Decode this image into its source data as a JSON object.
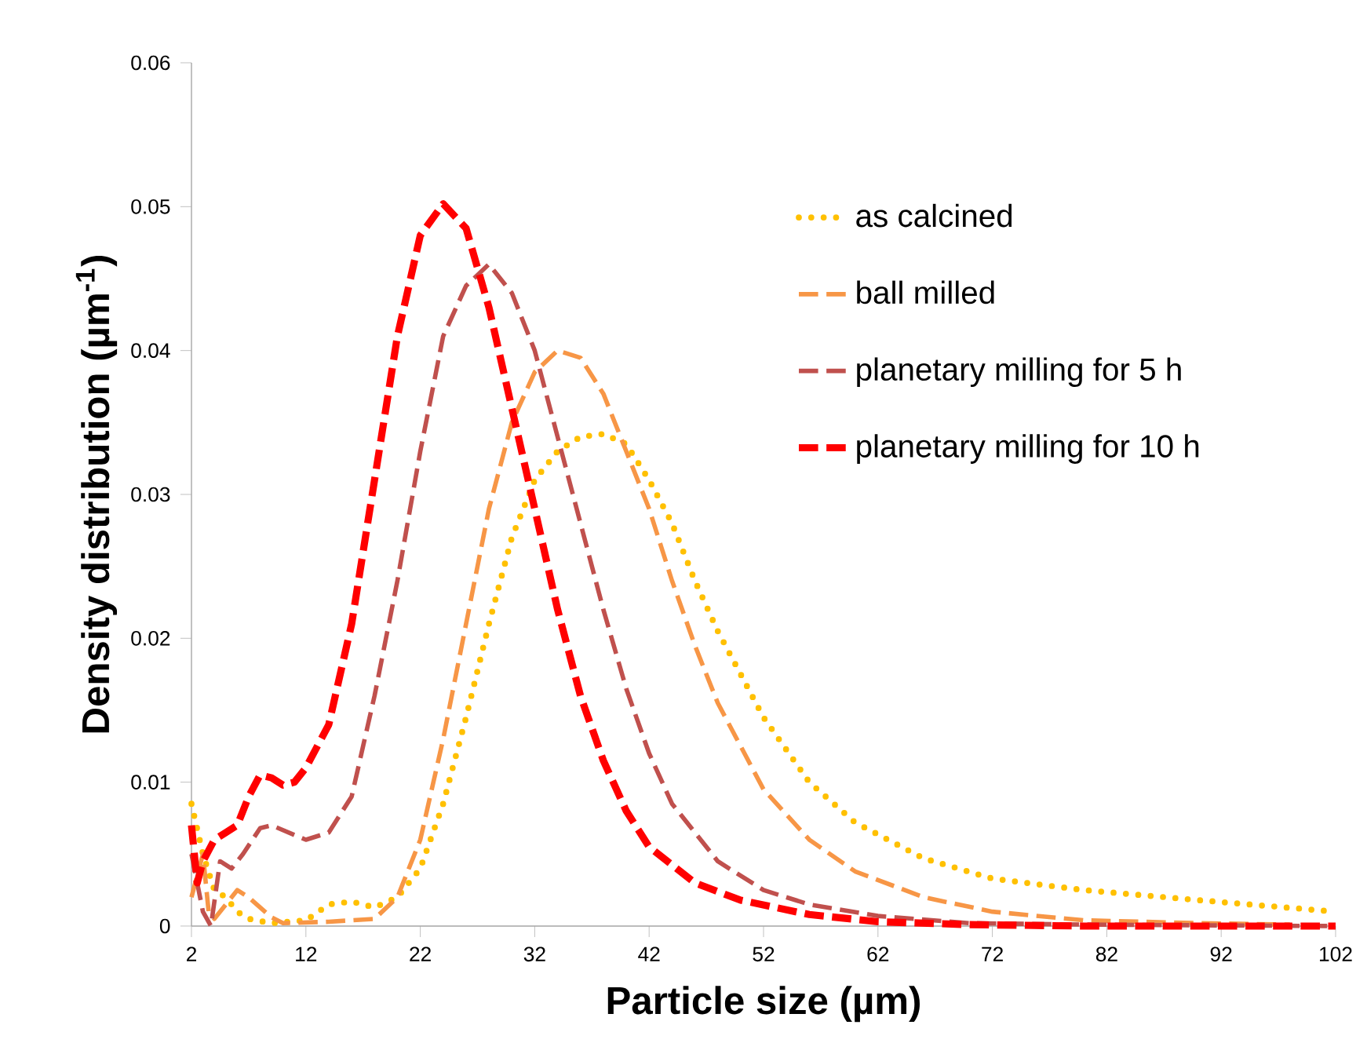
{
  "chart_data": {
    "type": "line",
    "xlabel": "Particle size (µm)",
    "ylabel": "Density distribution (µm$^{-1}$)",
    "xlim": [
      2,
      102
    ],
    "xticks": [
      2,
      12,
      22,
      32,
      42,
      52,
      62,
      72,
      82,
      92,
      102
    ],
    "ylim": [
      0,
      0.06
    ],
    "yticks": [
      0,
      0.01,
      0.02,
      0.03,
      0.04,
      0.05,
      0.06
    ],
    "grid": false,
    "legend": "right",
    "marker": "none",
    "series": [
      {
        "name": "as calcined",
        "color": "#ffc000",
        "line_style": "dotted",
        "x": [
          2,
          3,
          4,
          5,
          6,
          7,
          9,
          12,
          14,
          16,
          18,
          20,
          22,
          24,
          26,
          28,
          30,
          32,
          34,
          36,
          38,
          40,
          42,
          44,
          46,
          48,
          52,
          56,
          60,
          66,
          72,
          80,
          90,
          102
        ],
        "values": [
          0.0085,
          0.005,
          0.0025,
          0.002,
          0.001,
          0.0005,
          0.0002,
          0.0004,
          0.0015,
          0.0017,
          0.0013,
          0.002,
          0.004,
          0.0085,
          0.0145,
          0.021,
          0.027,
          0.031,
          0.033,
          0.034,
          0.0342,
          0.0335,
          0.031,
          0.028,
          0.024,
          0.0205,
          0.0145,
          0.01,
          0.0072,
          0.0047,
          0.0033,
          0.0025,
          0.0018,
          0.001
        ]
      },
      {
        "name": "ball milled",
        "color": "#f79646",
        "line_style": "dashed",
        "x": [
          2,
          3,
          3.5,
          4,
          5,
          6,
          7,
          9,
          10,
          14,
          18,
          20,
          22,
          24,
          26,
          28,
          30,
          32,
          34,
          36,
          38,
          40,
          42,
          44,
          46,
          48,
          52,
          56,
          60,
          66,
          72,
          80,
          90,
          98
        ],
        "values": [
          0.002,
          0.005,
          0.001,
          0.0005,
          0.0015,
          0.0025,
          0.002,
          0.0006,
          0.0002,
          0.0003,
          0.0005,
          0.002,
          0.006,
          0.013,
          0.021,
          0.029,
          0.035,
          0.0385,
          0.04,
          0.0395,
          0.037,
          0.033,
          0.029,
          0.024,
          0.0195,
          0.0155,
          0.0095,
          0.006,
          0.0038,
          0.002,
          0.001,
          0.0004,
          0.0002,
          0.0001
        ]
      },
      {
        "name": "planetary milling for 5 h",
        "color": "#c0504d",
        "line_style": "dashed",
        "x": [
          2,
          2.5,
          3,
          3.7,
          4.5,
          5.5,
          6.5,
          8,
          9,
          12,
          14,
          16,
          18,
          20,
          22,
          24,
          26,
          28,
          30,
          32,
          34,
          36,
          38,
          40,
          42,
          44,
          48,
          52,
          56,
          62,
          70,
          80,
          102
        ],
        "values": [
          0.005,
          0.003,
          0.001,
          0,
          0.0045,
          0.004,
          0.005,
          0.0068,
          0.007,
          0.006,
          0.0065,
          0.009,
          0.016,
          0.024,
          0.033,
          0.041,
          0.0445,
          0.046,
          0.044,
          0.04,
          0.034,
          0.028,
          0.022,
          0.0165,
          0.012,
          0.0085,
          0.0045,
          0.0025,
          0.0015,
          0.0007,
          0.0002,
          0.0001,
          0
        ]
      },
      {
        "name": "planetary milling for 10 h",
        "color": "#ff0000",
        "line_style": "dashed",
        "x": [
          2,
          2.5,
          3,
          4,
          5,
          6,
          7,
          8,
          9,
          10,
          11,
          12,
          14,
          16,
          18,
          20,
          22,
          24,
          26,
          28,
          30,
          32,
          34,
          36,
          38,
          40,
          42,
          46,
          50,
          56,
          62,
          70,
          80,
          102
        ],
        "values": [
          0.007,
          0.003,
          0.0045,
          0.006,
          0.0065,
          0.007,
          0.009,
          0.0105,
          0.0103,
          0.0098,
          0.01,
          0.011,
          0.014,
          0.021,
          0.031,
          0.041,
          0.048,
          0.0502,
          0.0485,
          0.043,
          0.036,
          0.029,
          0.022,
          0.016,
          0.0115,
          0.008,
          0.0055,
          0.003,
          0.0018,
          0.0008,
          0.0003,
          0.0001,
          0,
          0
        ]
      }
    ]
  }
}
